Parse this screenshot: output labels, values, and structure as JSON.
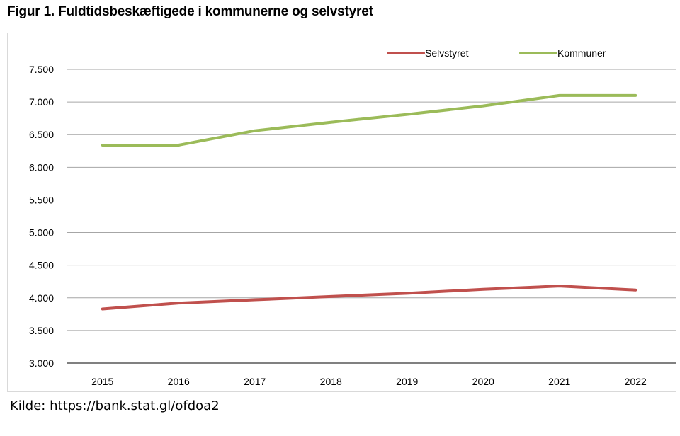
{
  "title": "Figur 1. Fuldtidsbeskæftigede i kommunerne og selvstyret",
  "source": {
    "label": "Kilde:",
    "link_text": "https://bank.stat.gl/ofdoa2"
  },
  "chart_data": {
    "type": "line",
    "title": "Figur 1. Fuldtidsbeskæftigede i kommunerne og selvstyret",
    "xlabel": "",
    "ylabel": "",
    "x": [
      "2015",
      "2016",
      "2017",
      "2018",
      "2019",
      "2020",
      "2021",
      "2022"
    ],
    "ylim": [
      3000,
      7500
    ],
    "yticks": [
      3000,
      3500,
      4000,
      4500,
      5000,
      5500,
      6000,
      6500,
      7000,
      7500
    ],
    "ytick_labels": [
      "3.000",
      "3.500",
      "4.000",
      "4.500",
      "5.000",
      "5.500",
      "6.000",
      "6.500",
      "7.000",
      "7.500"
    ],
    "grid": "horizontal",
    "legend_position": "top-right",
    "series": [
      {
        "name": "Selvstyret",
        "color": "#c0504d",
        "values": [
          3830,
          3920,
          3970,
          4020,
          4070,
          4130,
          4180,
          4120
        ]
      },
      {
        "name": "Kommuner",
        "color": "#9bbb59",
        "values": [
          6340,
          6340,
          6560,
          6690,
          6810,
          6940,
          7100,
          7100
        ]
      }
    ]
  }
}
